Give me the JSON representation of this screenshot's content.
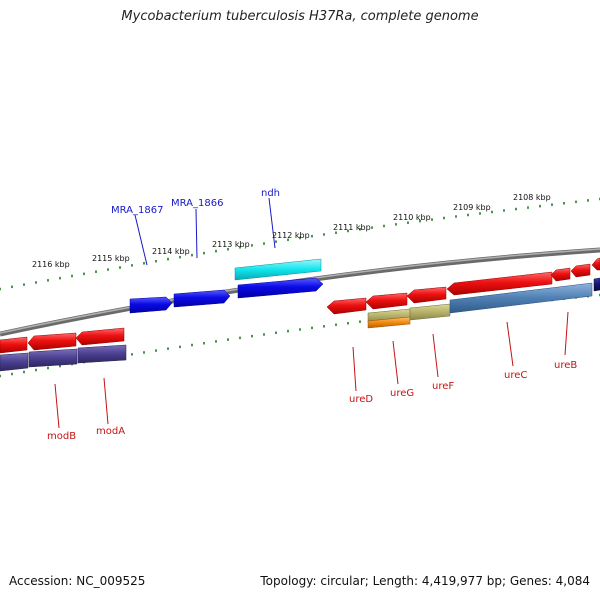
{
  "title": "Mycobacterium tuberculosis H37Ra, complete genome",
  "footer": {
    "accession": "Accession: NC_009525",
    "summary": "Topology: circular; Length: 4,419,977 bp; Genes: 4,084"
  },
  "ruler_labels": [
    "2116 kbp",
    "2115 kbp",
    "2114 kbp",
    "2113 kbp",
    "2112 kbp",
    "2111 kbp",
    "2110 kbp",
    "2109 kbp",
    "2108 kbp"
  ],
  "genes_forward": [
    {
      "label": "MRA_1867",
      "color": "#1010e0"
    },
    {
      "label": "MRA_1866",
      "color": "#1010e0"
    },
    {
      "label": "ndh",
      "color": "#1010e0"
    }
  ],
  "genes_reverse": [
    {
      "label": "modB",
      "color": "#d01010"
    },
    {
      "label": "modA",
      "color": "#d01010"
    },
    {
      "label": "ureD",
      "color": "#d01010"
    },
    {
      "label": "ureG",
      "color": "#d01010"
    },
    {
      "label": "ureF",
      "color": "#d01010"
    },
    {
      "label": "ureC",
      "color": "#d01010"
    },
    {
      "label": "ureB",
      "color": "#d01010"
    }
  ],
  "colors": {
    "backbone": "#808080",
    "tick": "#1f7a1f",
    "forward_cds": "#0a0ae6",
    "reverse_cds": "#ee1111",
    "cyan_feature": "#11e5ee",
    "purple_feature": "#4a3f8f",
    "steel_feature": "#4f7fb3",
    "khaki_feature": "#b7b26a",
    "orange_feature": "#f08a10",
    "navy_feature": "#141470"
  }
}
